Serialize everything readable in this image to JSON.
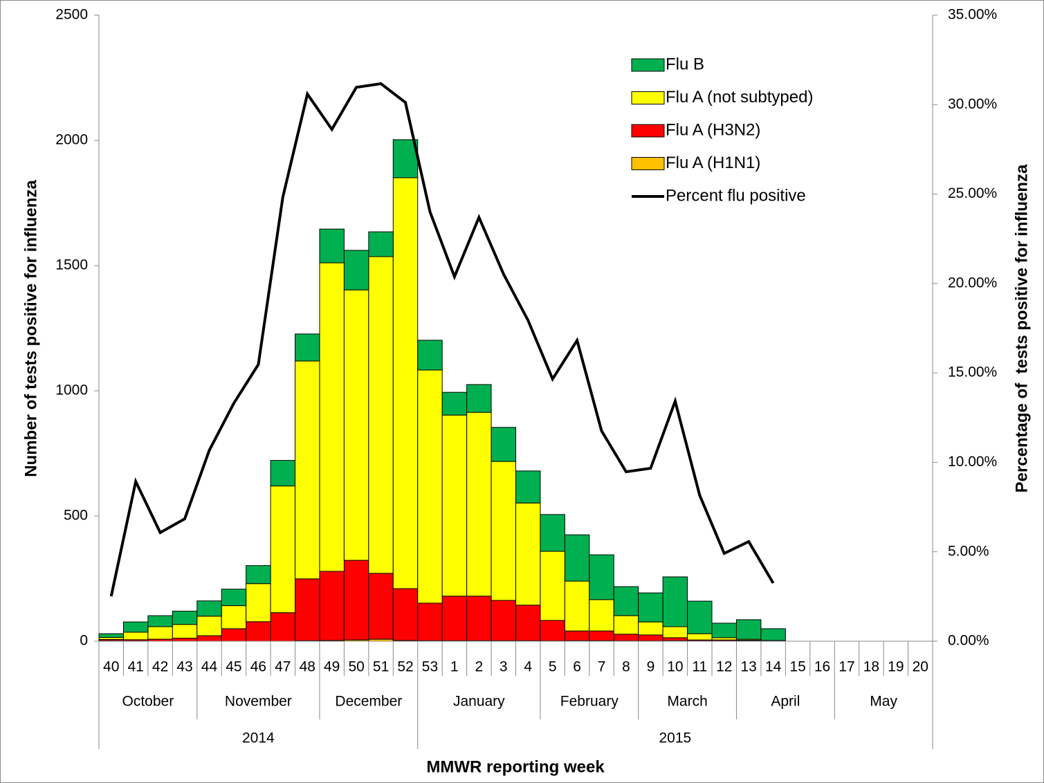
{
  "chart_data": {
    "type": "bar",
    "stacked": true,
    "x_label": "MMWR reporting week",
    "y_label": "Number of tests positive for influenza",
    "y2_label": "Percentage of  tests positive for influenza",
    "categories": [
      "40",
      "41",
      "42",
      "43",
      "44",
      "45",
      "46",
      "47",
      "48",
      "49",
      "50",
      "51",
      "52",
      "53",
      "1",
      "2",
      "3",
      "4",
      "5",
      "6",
      "7",
      "8",
      "9",
      "10",
      "11",
      "12",
      "13",
      "14",
      "15",
      "16",
      "17",
      "18",
      "19",
      "20"
    ],
    "months": [
      "October",
      null,
      null,
      null,
      "November",
      null,
      null,
      null,
      null,
      "December",
      null,
      null,
      null,
      "January",
      null,
      null,
      null,
      null,
      "February",
      null,
      null,
      null,
      "March",
      null,
      null,
      null,
      "April",
      null,
      null,
      null,
      "May",
      null,
      null,
      null
    ],
    "years": [
      "2014",
      null,
      null,
      null,
      null,
      null,
      null,
      null,
      null,
      null,
      null,
      null,
      null,
      "2015",
      null,
      null,
      null,
      null,
      null,
      null,
      null,
      null,
      null,
      null,
      null,
      null,
      null,
      null,
      null,
      null,
      null,
      null,
      null,
      null
    ],
    "series": [
      {
        "name": "Flu A (H1N1)",
        "color": "#ffc000",
        "values": [
          2,
          1,
          0,
          0,
          0,
          0,
          0,
          0,
          2,
          3,
          5,
          8,
          3,
          2,
          2,
          2,
          2,
          2,
          1,
          2,
          2,
          1,
          1,
          2,
          1,
          1,
          2,
          0,
          null,
          null,
          null,
          null,
          null,
          null
        ]
      },
      {
        "name": "Flu A (H3N2)",
        "color": "#ff0000",
        "values": [
          5,
          5,
          8,
          12,
          22,
          50,
          78,
          114,
          247,
          276,
          318,
          263,
          207,
          150,
          178,
          178,
          161,
          142,
          82,
          39,
          39,
          27,
          24,
          12,
          4,
          4,
          2,
          1,
          null,
          null,
          null,
          null,
          null,
          null
        ]
      },
      {
        "name": "Flu A (not subtyped)",
        "color": "#ffff00",
        "values": [
          8,
          30,
          50,
          55,
          78,
          92,
          152,
          506,
          870,
          1232,
          1080,
          1265,
          1641,
          931,
          723,
          734,
          555,
          408,
          276,
          199,
          125,
          74,
          52,
          44,
          25,
          9,
          4,
          2,
          null,
          null,
          null,
          null,
          null,
          null
        ]
      },
      {
        "name": "Flu B",
        "color": "#00b050",
        "values": [
          15,
          41,
          44,
          53,
          61,
          66,
          72,
          102,
          108,
          135,
          158,
          99,
          152,
          119,
          91,
          111,
          136,
          128,
          147,
          185,
          179,
          116,
          116,
          199,
          130,
          58,
          78,
          47,
          null,
          null,
          null,
          null,
          null,
          null
        ]
      },
      {
        "name": "Percent flu positive",
        "type": "line",
        "axis": "y2",
        "color": "#000000",
        "values": [
          2.51,
          8.93,
          6.07,
          6.84,
          10.67,
          13.3,
          15.47,
          24.83,
          30.59,
          28.62,
          30.97,
          31.17,
          30.12,
          24.01,
          20.38,
          23.7,
          20.53,
          17.94,
          14.66,
          16.82,
          11.76,
          9.47,
          9.67,
          13.42,
          8.16,
          4.91,
          5.57,
          3.25,
          null,
          null,
          null,
          null,
          null,
          null
        ]
      }
    ],
    "ylim": [
      0,
      2500
    ],
    "yticks": [
      0,
      500,
      1000,
      1500,
      2000,
      2500
    ],
    "y2lim": [
      0,
      35
    ],
    "y2ticks": [
      {
        "value": 0,
        "label": "0.00%"
      },
      {
        "value": 5,
        "label": "5.00%"
      },
      {
        "value": 10,
        "label": "10.00%"
      },
      {
        "value": 15,
        "label": "15.00%"
      },
      {
        "value": 20,
        "label": "20.00%"
      },
      {
        "value": 25,
        "label": "25.00%"
      },
      {
        "value": 30,
        "label": "30.00%"
      },
      {
        "value": 35,
        "label": "35.00%"
      }
    ],
    "grid": false,
    "legend": "top-right"
  }
}
